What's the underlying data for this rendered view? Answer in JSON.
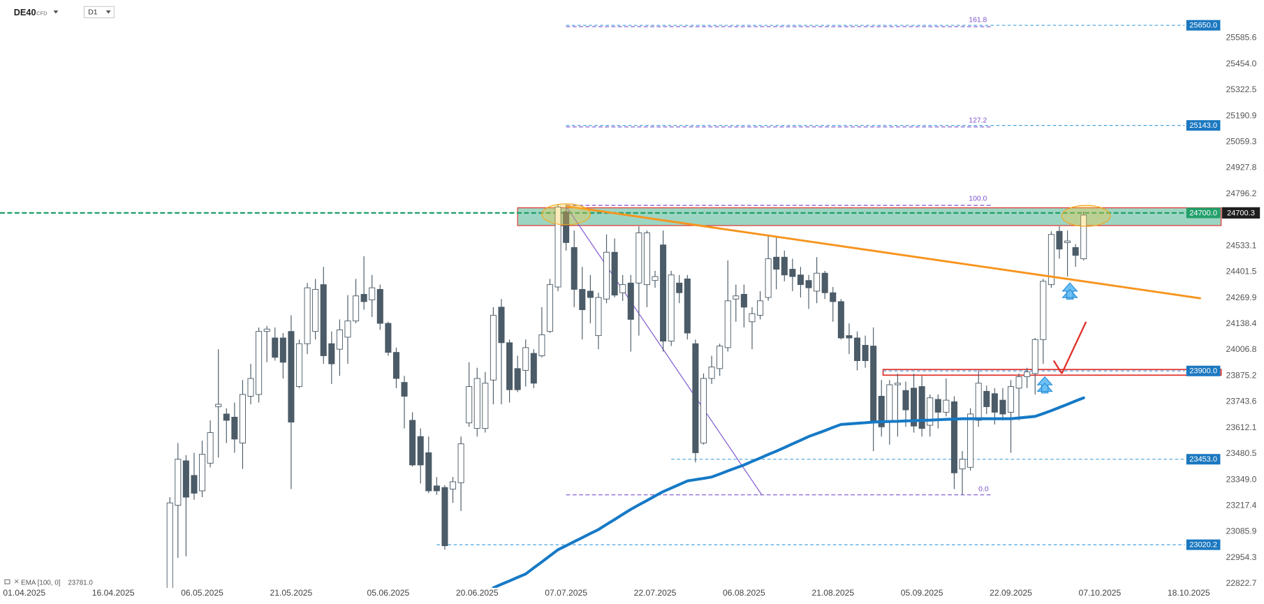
{
  "chart_data": {
    "type": "candlestick",
    "symbol": "DE40",
    "instrument": "CFD",
    "timeframe": "D1",
    "categories": [
      "01.04.2025",
      null,
      null,
      null,
      null,
      null,
      null,
      null,
      null,
      null,
      null,
      "16.04.2025",
      null,
      null,
      null,
      null,
      null,
      null,
      null,
      null,
      null,
      null,
      "06.05.2025",
      null,
      null,
      null,
      null,
      null,
      null,
      null,
      null,
      null,
      null,
      "21.05.2025",
      null,
      null,
      null,
      null,
      null,
      null,
      null,
      null,
      null,
      null,
      null,
      "05.06.2025",
      null,
      null,
      null,
      null,
      null,
      null,
      null,
      null,
      null,
      null,
      "20.06.2025",
      null,
      null,
      null,
      null,
      null,
      null,
      null,
      null,
      null,
      null,
      "07.07.2025",
      null,
      null,
      null,
      null,
      null,
      null,
      null,
      null,
      null,
      null,
      "22.07.2025",
      null,
      null,
      null,
      null,
      null,
      null,
      null,
      null,
      null,
      null,
      "06.08.2025",
      null,
      null,
      null,
      null,
      null,
      null,
      null,
      null,
      null,
      null,
      "21.08.2025",
      null,
      null,
      null,
      null,
      null,
      null,
      null,
      null,
      null,
      null,
      "05.09.2025",
      null,
      null,
      null,
      null,
      null,
      null,
      null,
      null,
      null,
      null,
      "22.09.2025",
      null,
      null,
      null,
      null,
      null,
      null,
      null,
      null,
      null,
      null,
      "07.10.2025",
      null,
      null,
      null,
      null,
      null,
      null,
      null,
      null,
      null,
      null,
      "18.10.2025"
    ],
    "open": [
      null,
      null,
      null,
      null,
      null,
      null,
      null,
      null,
      null,
      null,
      null,
      null,
      null,
      null,
      null,
      null,
      null,
      null,
      22770,
      23220,
      23445,
      23371,
      23293,
      23433,
      23719,
      23682,
      23666,
      23535,
      23772,
      23781,
      24100,
      24067,
      24067,
      24100,
      23821,
      24038,
      24100,
      24337,
      24038,
      24010,
      24071,
      24153,
      24288,
      24260,
      24313,
      24141,
      23994,
      23842,
      23650,
      23568,
      23486,
      23318,
      23310,
      23302,
      23334,
      23637,
      23609,
      23609,
      23854,
      24223,
      24043,
      23912,
      23903,
      23989,
      23977,
      24100,
      24325,
      24706,
      24525,
      24313,
      24304,
      24079,
      24264,
      24501,
      24296,
      24345,
      24345,
      24337,
      24358,
      24538,
      24051,
      24345,
      24366,
      24038,
      23535,
      23862,
      23912,
      24018,
      24264,
      24288,
      24149,
      24182,
      24272,
      24476,
      24476,
      24415,
      24386,
      24358,
      24304,
      24395,
      24296,
      24251,
      24079,
      24067,
      24030,
      24026,
      23772,
      23641,
      23830,
      23801,
      23813,
      23821,
      23625,
      23756,
      23691,
      23744,
      23404,
      23412,
      23650,
      23797,
      23785,
      23752,
      23691,
      23813,
      23871,
      23887,
      24059,
      24337,
      24607,
      24550,
      24525,
      24468,
      null,
      null,
      null,
      null,
      null,
      null,
      null,
      null,
      null,
      null,
      null,
      null,
      null
    ],
    "high": [
      null,
      null,
      null,
      null,
      null,
      null,
      null,
      null,
      null,
      null,
      null,
      null,
      null,
      null,
      null,
      null,
      null,
      null,
      23261,
      23535,
      23474,
      23486,
      23547,
      23650,
      24010,
      23711,
      23740,
      23854,
      23936,
      24120,
      24128,
      24120,
      24092,
      24182,
      24059,
      24345,
      24366,
      24427,
      24100,
      24161,
      24284,
      24366,
      24481,
      24386,
      24337,
      24149,
      24018,
      23875,
      23691,
      23609,
      23568,
      23363,
      23322,
      23363,
      23568,
      23944,
      23916,
      23895,
      24223,
      24264,
      24059,
      23977,
      24059,
      24010,
      24223,
      24366,
      24742,
      24742,
      24611,
      24427,
      24386,
      24296,
      24591,
      24571,
      24386,
      24386,
      24632,
      24611,
      24407,
      24611,
      24407,
      24386,
      24386,
      24059,
      23887,
      23977,
      24038,
      24460,
      24337,
      24337,
      24223,
      24304,
      24591,
      24583,
      24509,
      24468,
      24427,
      24386,
      24476,
      24407,
      24325,
      24264,
      24141,
      24100,
      24079,
      24120,
      23854,
      23854,
      23887,
      23846,
      23887,
      23875,
      23781,
      23781,
      23862,
      23772,
      23494,
      23711,
      23903,
      23826,
      23813,
      23813,
      23854,
      23887,
      23916,
      24067,
      24366,
      24607,
      24632,
      24611,
      24542,
      24706,
      null,
      null,
      null,
      null,
      null,
      null,
      null,
      null,
      null,
      null,
      null,
      null,
      null
    ],
    "low": [
      null,
      null,
      null,
      null,
      null,
      null,
      null,
      null,
      null,
      null,
      null,
      null,
      null,
      null,
      null,
      null,
      null,
      null,
      22729,
      22954,
      22962,
      23248,
      23261,
      23412,
      23461,
      23535,
      23486,
      23404,
      23731,
      23740,
      23944,
      23952,
      23862,
      23302,
      23813,
      23985,
      24059,
      23936,
      23834,
      23875,
      23936,
      24141,
      24210,
      24173,
      24108,
      23977,
      23813,
      23609,
      23416,
      23330,
      23281,
      23273,
      22995,
      23232,
      23191,
      23617,
      23568,
      23588,
      23731,
      23731,
      23740,
      23793,
      23821,
      23813,
      23969,
      24092,
      24304,
      24509,
      24223,
      24059,
      24141,
      24010,
      24243,
      24272,
      24255,
      23998,
      24079,
      24223,
      24321,
      23998,
      24026,
      24243,
      24059,
      23437,
      23527,
      23834,
      23875,
      23998,
      24149,
      24120,
      24010,
      24161,
      24255,
      24313,
      24354,
      24304,
      24272,
      24214,
      24243,
      24264,
      24149,
      24059,
      23985,
      23903,
      23916,
      23494,
      23568,
      23527,
      23568,
      23617,
      23588,
      23568,
      23568,
      23609,
      23670,
      23302,
      23273,
      23396,
      23617,
      23682,
      23629,
      23650,
      23486,
      23650,
      23813,
      23781,
      23936,
      24321,
      24468,
      24378,
      24427,
      24460,
      null,
      null,
      null,
      null,
      null,
      null,
      null,
      null,
      null,
      null,
      null,
      null,
      null
    ],
    "close": [
      null,
      null,
      null,
      null,
      null,
      null,
      null,
      null,
      null,
      null,
      null,
      null,
      null,
      null,
      null,
      null,
      null,
      null,
      23232,
      23453,
      23261,
      23281,
      23478,
      23588,
      23731,
      23650,
      23555,
      23781,
      23862,
      24100,
      24112,
      23969,
      23944,
      23641,
      24038,
      24321,
      24313,
      23977,
      23936,
      24108,
      24153,
      24280,
      24251,
      24321,
      24141,
      23994,
      23862,
      23772,
      23424,
      23424,
      23293,
      23293,
      23015,
      23339,
      23531,
      23821,
      23862,
      23838,
      24182,
      24043,
      23805,
      23805,
      24018,
      23838,
      24083,
      24337,
      24730,
      24550,
      24313,
      24210,
      24272,
      24272,
      24501,
      24284,
      24337,
      24161,
      24599,
      24599,
      24378,
      24051,
      24386,
      24296,
      24092,
      23486,
      23862,
      23920,
      24026,
      24255,
      24280,
      24223,
      24190,
      24255,
      24468,
      24415,
      24386,
      24378,
      24337,
      24321,
      24395,
      24296,
      24251,
      24067,
      24067,
      23952,
      23952,
      23641,
      23617,
      23830,
      23838,
      23703,
      23621,
      23609,
      23764,
      23691,
      23752,
      23384,
      23453,
      23682,
      23838,
      23719,
      23691,
      23682,
      23821,
      23871,
      23895,
      24059,
      24354,
      24591,
      24517,
      24558,
      24485,
      24689,
      null,
      null,
      null,
      null,
      null,
      null,
      null,
      null,
      null,
      null,
      null,
      null,
      null
    ],
    "colors": {
      "up": "#ffffff",
      "down": "#4b5b67",
      "wick": "#4b5b67"
    },
    "indicator": {
      "name": "EMA [100, 0]",
      "value_label": "23781.0",
      "color": "#1579c6",
      "values": [
        null,
        null,
        null,
        null,
        null,
        null,
        null,
        null,
        null,
        null,
        null,
        null,
        null,
        null,
        null,
        null,
        null,
        null,
        null,
        null,
        null,
        null,
        null,
        null,
        null,
        null,
        null,
        null,
        null,
        null,
        null,
        null,
        null,
        null,
        null,
        null,
        null,
        null,
        null,
        null,
        null,
        null,
        null,
        null,
        null,
        null,
        null,
        null,
        null,
        null,
        null,
        null,
        null,
        null,
        null,
        null,
        null,
        null,
        22802,
        22820,
        22837,
        22855,
        22872,
        22903,
        22933,
        22964,
        22995,
        23015,
        23036,
        23056,
        23077,
        23097,
        23123,
        23148,
        23174,
        23199,
        23222,
        23244,
        23267,
        23289,
        23307,
        23325,
        23343,
        23350,
        23356,
        23363,
        23378,
        23394,
        23409,
        23424,
        23442,
        23459,
        23477,
        23494,
        23512,
        23531,
        23549,
        23568,
        23583,
        23598,
        23614,
        23629,
        23632,
        23635,
        23638,
        23641,
        23643,
        23644,
        23645,
        23647,
        23648,
        23650,
        23651,
        23653,
        23655,
        23656,
        23658,
        23658,
        23658,
        23658,
        23658,
        23658,
        23658,
        23662,
        23666,
        23670,
        23684,
        23699,
        23715,
        23731,
        23748,
        23764,
        null,
        null,
        null,
        null,
        null,
        null,
        null,
        null,
        null,
        null,
        null,
        null,
        null
      ]
    },
    "ylim": [
      22802,
      25778
    ],
    "yticks": [
      25585.6,
      {
        "value": 25454,
        "label": "25454.0"
      },
      25322.5,
      25190.9,
      25059.3,
      24927.8,
      24796.2,
      24533.1,
      24401.5,
      24269.9,
      24138.4,
      24006.8,
      23875.2,
      23743.6,
      23612.1,
      23480.5,
      {
        "value": 23349,
        "label": "23349.0"
      },
      23217.4,
      23085.9,
      22954.3,
      22822.7
    ],
    "price_levels": [
      {
        "value": 25650,
        "label": "25650.0",
        "color": "#1b78c0"
      },
      {
        "value": 25143,
        "label": "25143.0",
        "color": "#1b78c0"
      },
      {
        "value": 24700,
        "label": "24700.0",
        "color": "#22a06b"
      },
      {
        "value": 23900,
        "label": "23900.0",
        "color": "#1b78c0"
      },
      {
        "value": 23453,
        "label": "23453.0",
        "color": "#1b78c0"
      },
      {
        "value": 23020.2,
        "label": "23020.2",
        "color": "#1b78c0"
      }
    ],
    "current_price": {
      "value": 24700.3,
      "color": "#1e1e1e"
    },
    "fibonacci_labels": [
      "161.8",
      "127.2",
      "100.0",
      "0.0"
    ]
  }
}
